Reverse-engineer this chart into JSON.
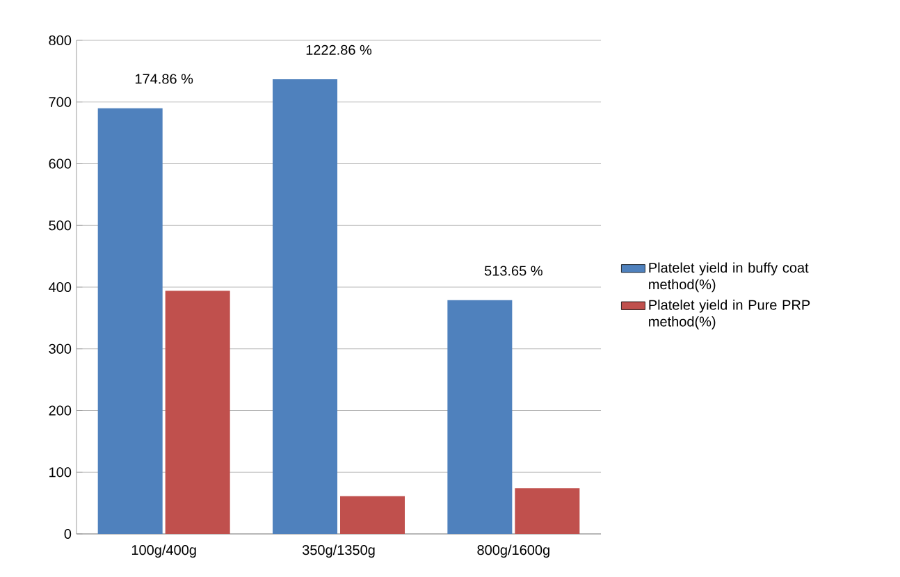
{
  "chart_data": {
    "type": "bar",
    "categories": [
      "100g/400g",
      "350g/1350g",
      "800g/1600g"
    ],
    "series": [
      {
        "name": "Platelet yield in buffy coat method(%)",
        "color": "#4f81bd",
        "values": [
          690,
          737,
          379
        ]
      },
      {
        "name": "Platelet yield in Pure PRP method(%)",
        "color": "#c0504d",
        "values": [
          394,
          61,
          74
        ]
      }
    ],
    "ylim": [
      0,
      800
    ],
    "yticks": [
      0,
      100,
      200,
      300,
      400,
      500,
      600,
      700,
      800
    ],
    "grid": "y",
    "legend": "right",
    "annotations": [
      "174.86  %",
      "1222.86  %",
      "513.65  %"
    ]
  }
}
